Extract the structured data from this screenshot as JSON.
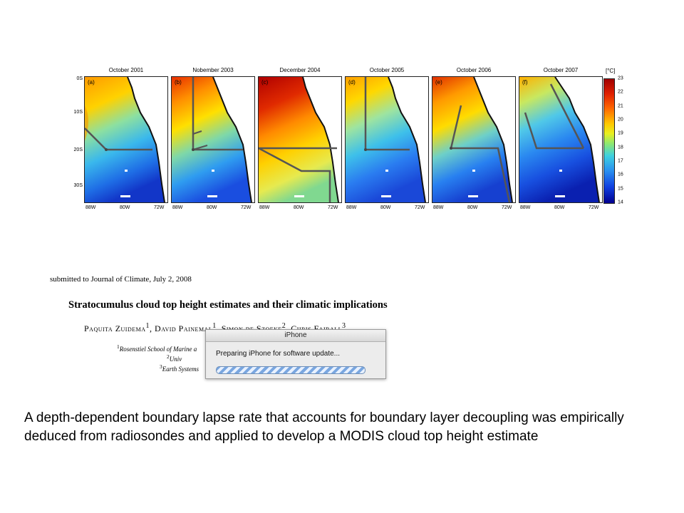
{
  "figure": {
    "panels": [
      {
        "title": "October 2001",
        "letter": "(a)"
      },
      {
        "title": "Nobember 2003",
        "letter": "(b)"
      },
      {
        "title": "December 2004",
        "letter": "(c)"
      },
      {
        "title": "October 2005",
        "letter": "(d)"
      },
      {
        "title": "October 2006",
        "letter": "(e)"
      },
      {
        "title": "October 2007",
        "letter": "(f)"
      }
    ],
    "x_ticks": [
      "88W",
      "80W",
      "72W"
    ],
    "y_ticks": [
      "0S",
      "10S",
      "20S",
      "30S"
    ],
    "colorbar": {
      "unit": "[°C]",
      "ticks": [
        "23",
        "22",
        "21",
        "20",
        "19",
        "18",
        "17",
        "16",
        "15",
        "14"
      ],
      "min": 14,
      "max": 23
    }
  },
  "paper": {
    "submitted": "submitted to Journal of Climate, July 2, 2008",
    "title": "Stratocumulus cloud top height estimates and their climatic implications",
    "authors": [
      {
        "name": "Paquita Zuidema",
        "sup": "1"
      },
      {
        "name": "David Painemal",
        "sup": "1"
      },
      {
        "name": "Simon de Szoeke",
        "sup": "2"
      },
      {
        "name": "Chris Fairall",
        "sup": "3"
      }
    ],
    "affiliations": [
      {
        "sup": "1",
        "text": "Rosenstiel School of Marine a"
      },
      {
        "sup": "2",
        "text": "Univ"
      },
      {
        "sup": "3",
        "text": "Earth Systems"
      }
    ]
  },
  "dialog": {
    "title": "iPhone",
    "message": "Preparing iPhone for software update...",
    "progress": 1.0
  },
  "caption": "A depth-dependent boundary lapse rate that accounts for boundary layer decoupling was empirically deduced from radiosondes and applied to develop a MODIS cloud top height estimate"
}
